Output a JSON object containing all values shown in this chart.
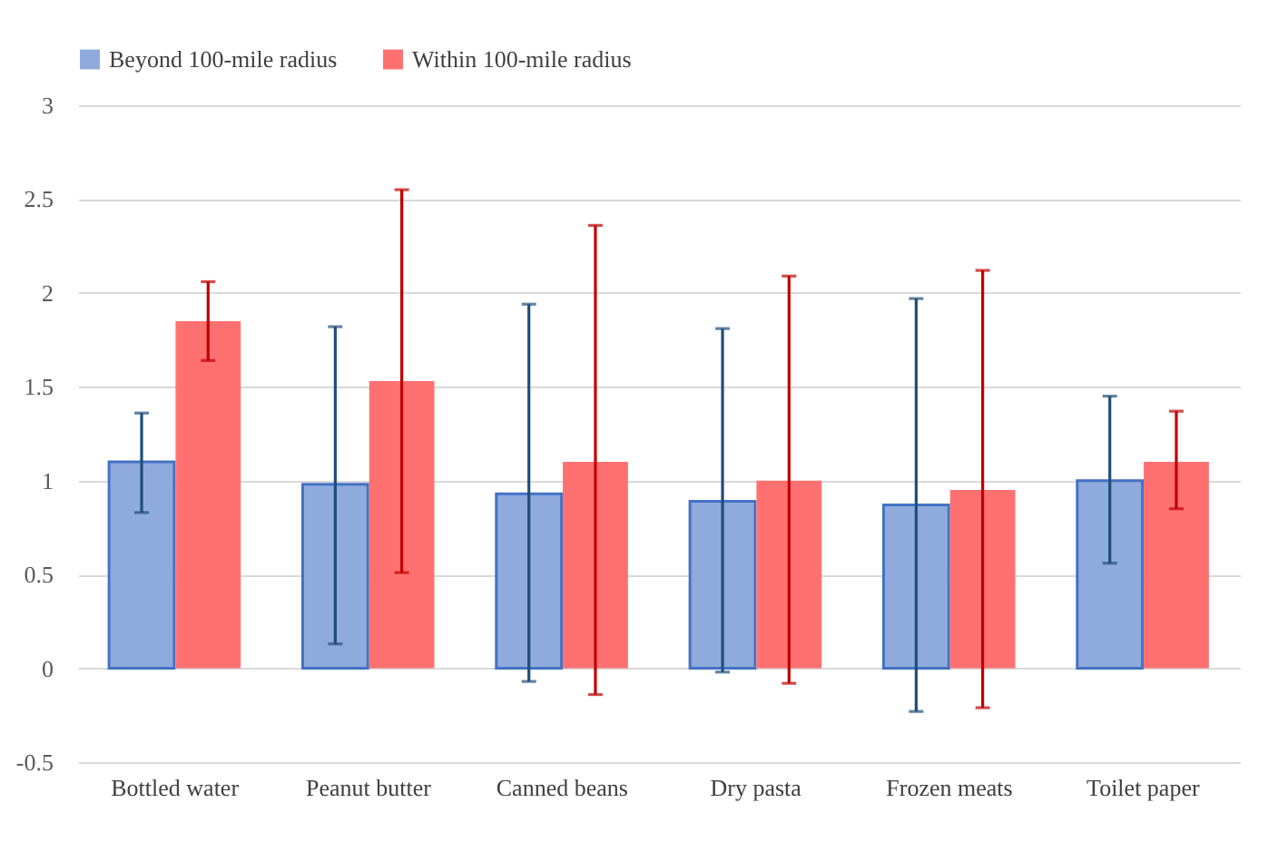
{
  "chart_data": {
    "type": "bar",
    "categories": [
      "Bottled water",
      "Peanut butter",
      "Canned beans",
      "Dry pasta",
      "Frozen meats",
      "Toilet paper"
    ],
    "series": [
      {
        "name": "Beyond 100-mile radius",
        "color": "#8faadc",
        "values": [
          1.1,
          0.98,
          0.93,
          0.89,
          0.87,
          1.0
        ],
        "errors": [
          [
            0.83,
            1.36
          ],
          [
            0.13,
            1.82
          ],
          [
            -0.07,
            1.94
          ],
          [
            -0.02,
            1.81
          ],
          [
            -0.23,
            1.97
          ],
          [
            0.56,
            1.45
          ]
        ]
      },
      {
        "name": "Within 100-mile radius",
        "color": "#ff7171",
        "values": [
          1.85,
          1.53,
          1.1,
          1.0,
          0.95,
          1.1
        ],
        "errors": [
          [
            1.64,
            2.06
          ],
          [
            0.51,
            2.55
          ],
          [
            -0.14,
            2.36
          ],
          [
            -0.08,
            2.09
          ],
          [
            -0.21,
            2.12
          ],
          [
            0.85,
            1.37
          ]
        ]
      }
    ],
    "ylim": [
      -0.5,
      3
    ],
    "yticks": [
      -0.5,
      0,
      0.5,
      1,
      1.5,
      2,
      2.5,
      3
    ],
    "grid": "y",
    "legend": "top"
  }
}
